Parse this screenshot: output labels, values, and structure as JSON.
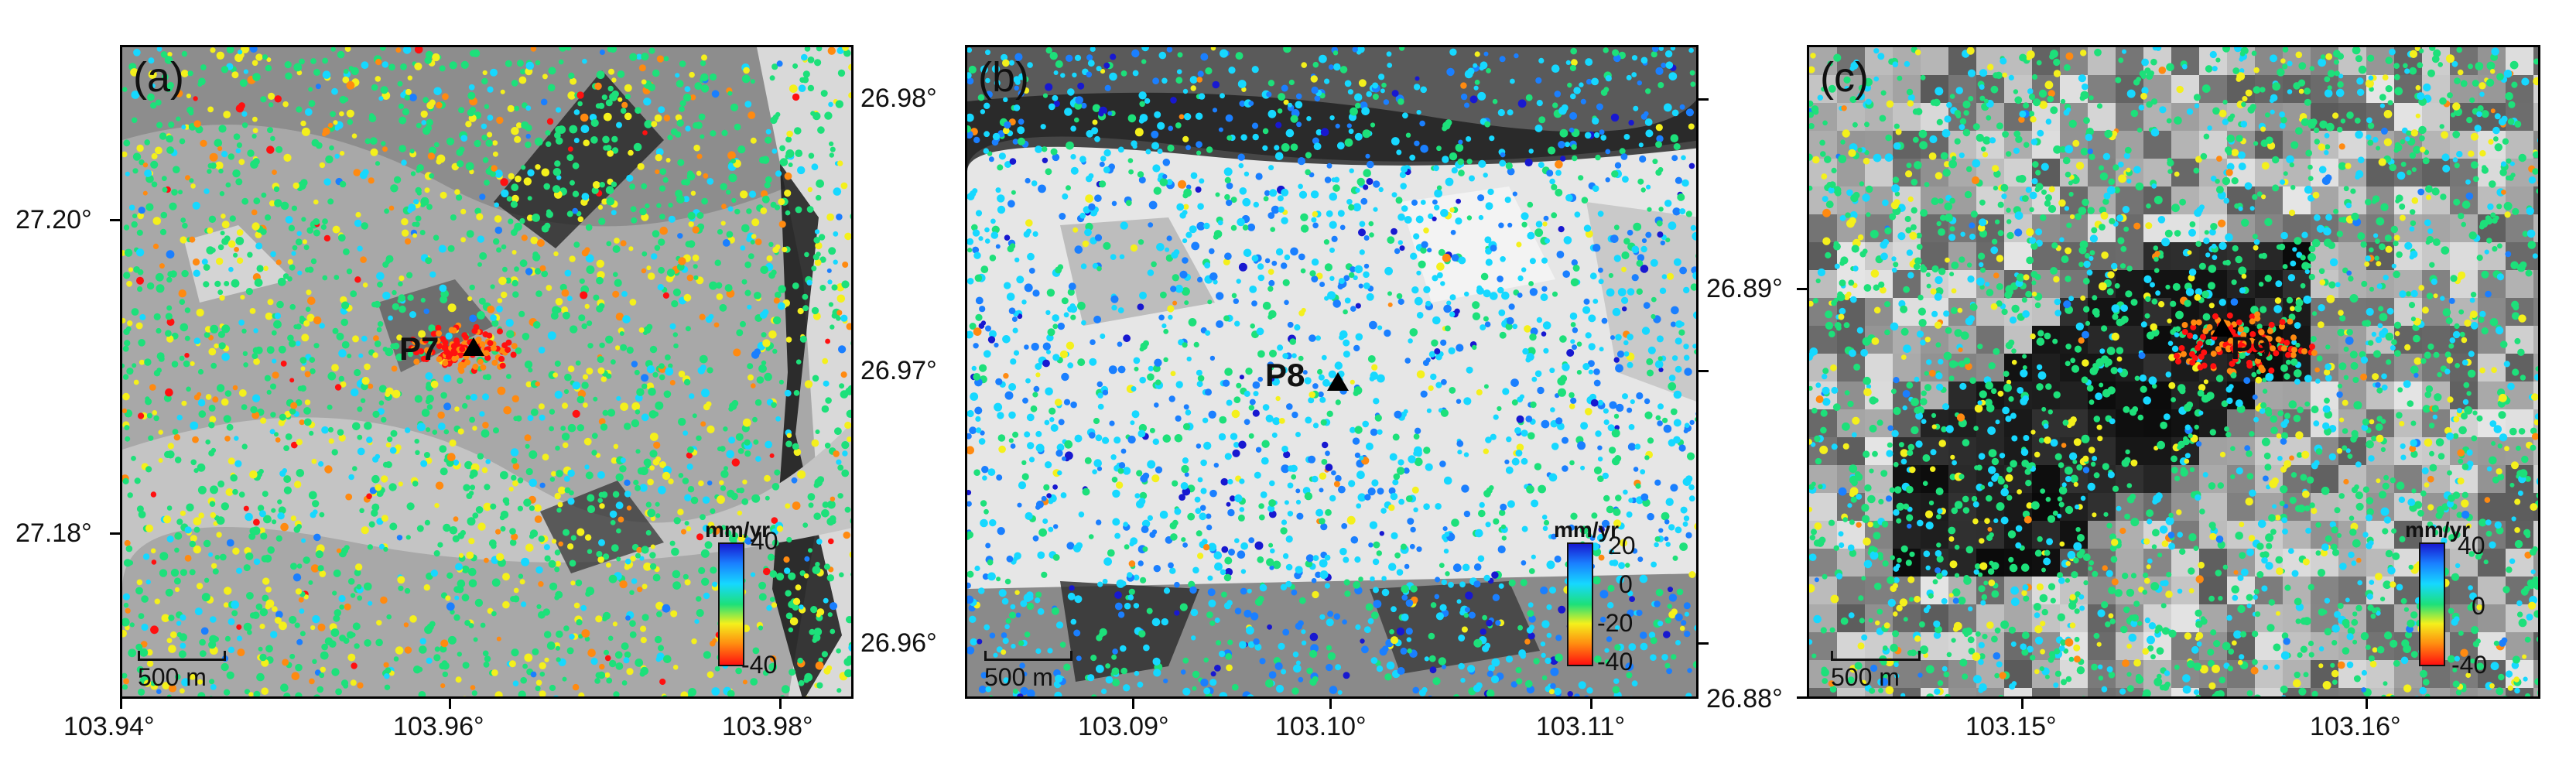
{
  "panels": [
    {
      "label": "(a)",
      "point": "P7",
      "y_ticks": [
        "27.20°",
        "27.18°"
      ],
      "x_ticks": [
        "103.94°",
        "103.96°",
        "103.98°"
      ],
      "scale": "500 m",
      "colorbar": {
        "unit": "mm/yr",
        "ticks": [
          "40",
          "-40"
        ]
      }
    },
    {
      "label": "(b)",
      "point": "P8",
      "y_ticks": [
        "26.98°",
        "26.97°",
        "26.96°"
      ],
      "x_ticks": [
        "103.09°",
        "103.10°",
        "103.11°"
      ],
      "scale": "500 m",
      "colorbar": {
        "unit": "mm/yr",
        "ticks": [
          "20",
          "0",
          "-20",
          "-40"
        ]
      }
    },
    {
      "label": "(c)",
      "point": "P9",
      "y_ticks": [
        "26.89°",
        "26.88°"
      ],
      "x_ticks": [
        "103.15°",
        "103.16°"
      ],
      "scale": "500 m",
      "colorbar": {
        "unit": "mm/yr",
        "ticks": [
          "40",
          "0",
          "-40"
        ]
      }
    }
  ],
  "colors": {
    "velocity_scale": [
      "#1818d0",
      "#1a7fff",
      "#16d8ff",
      "#1de07a",
      "#f4f01c",
      "#ff8a10",
      "#ff1010"
    ],
    "marker": "#000000"
  }
}
